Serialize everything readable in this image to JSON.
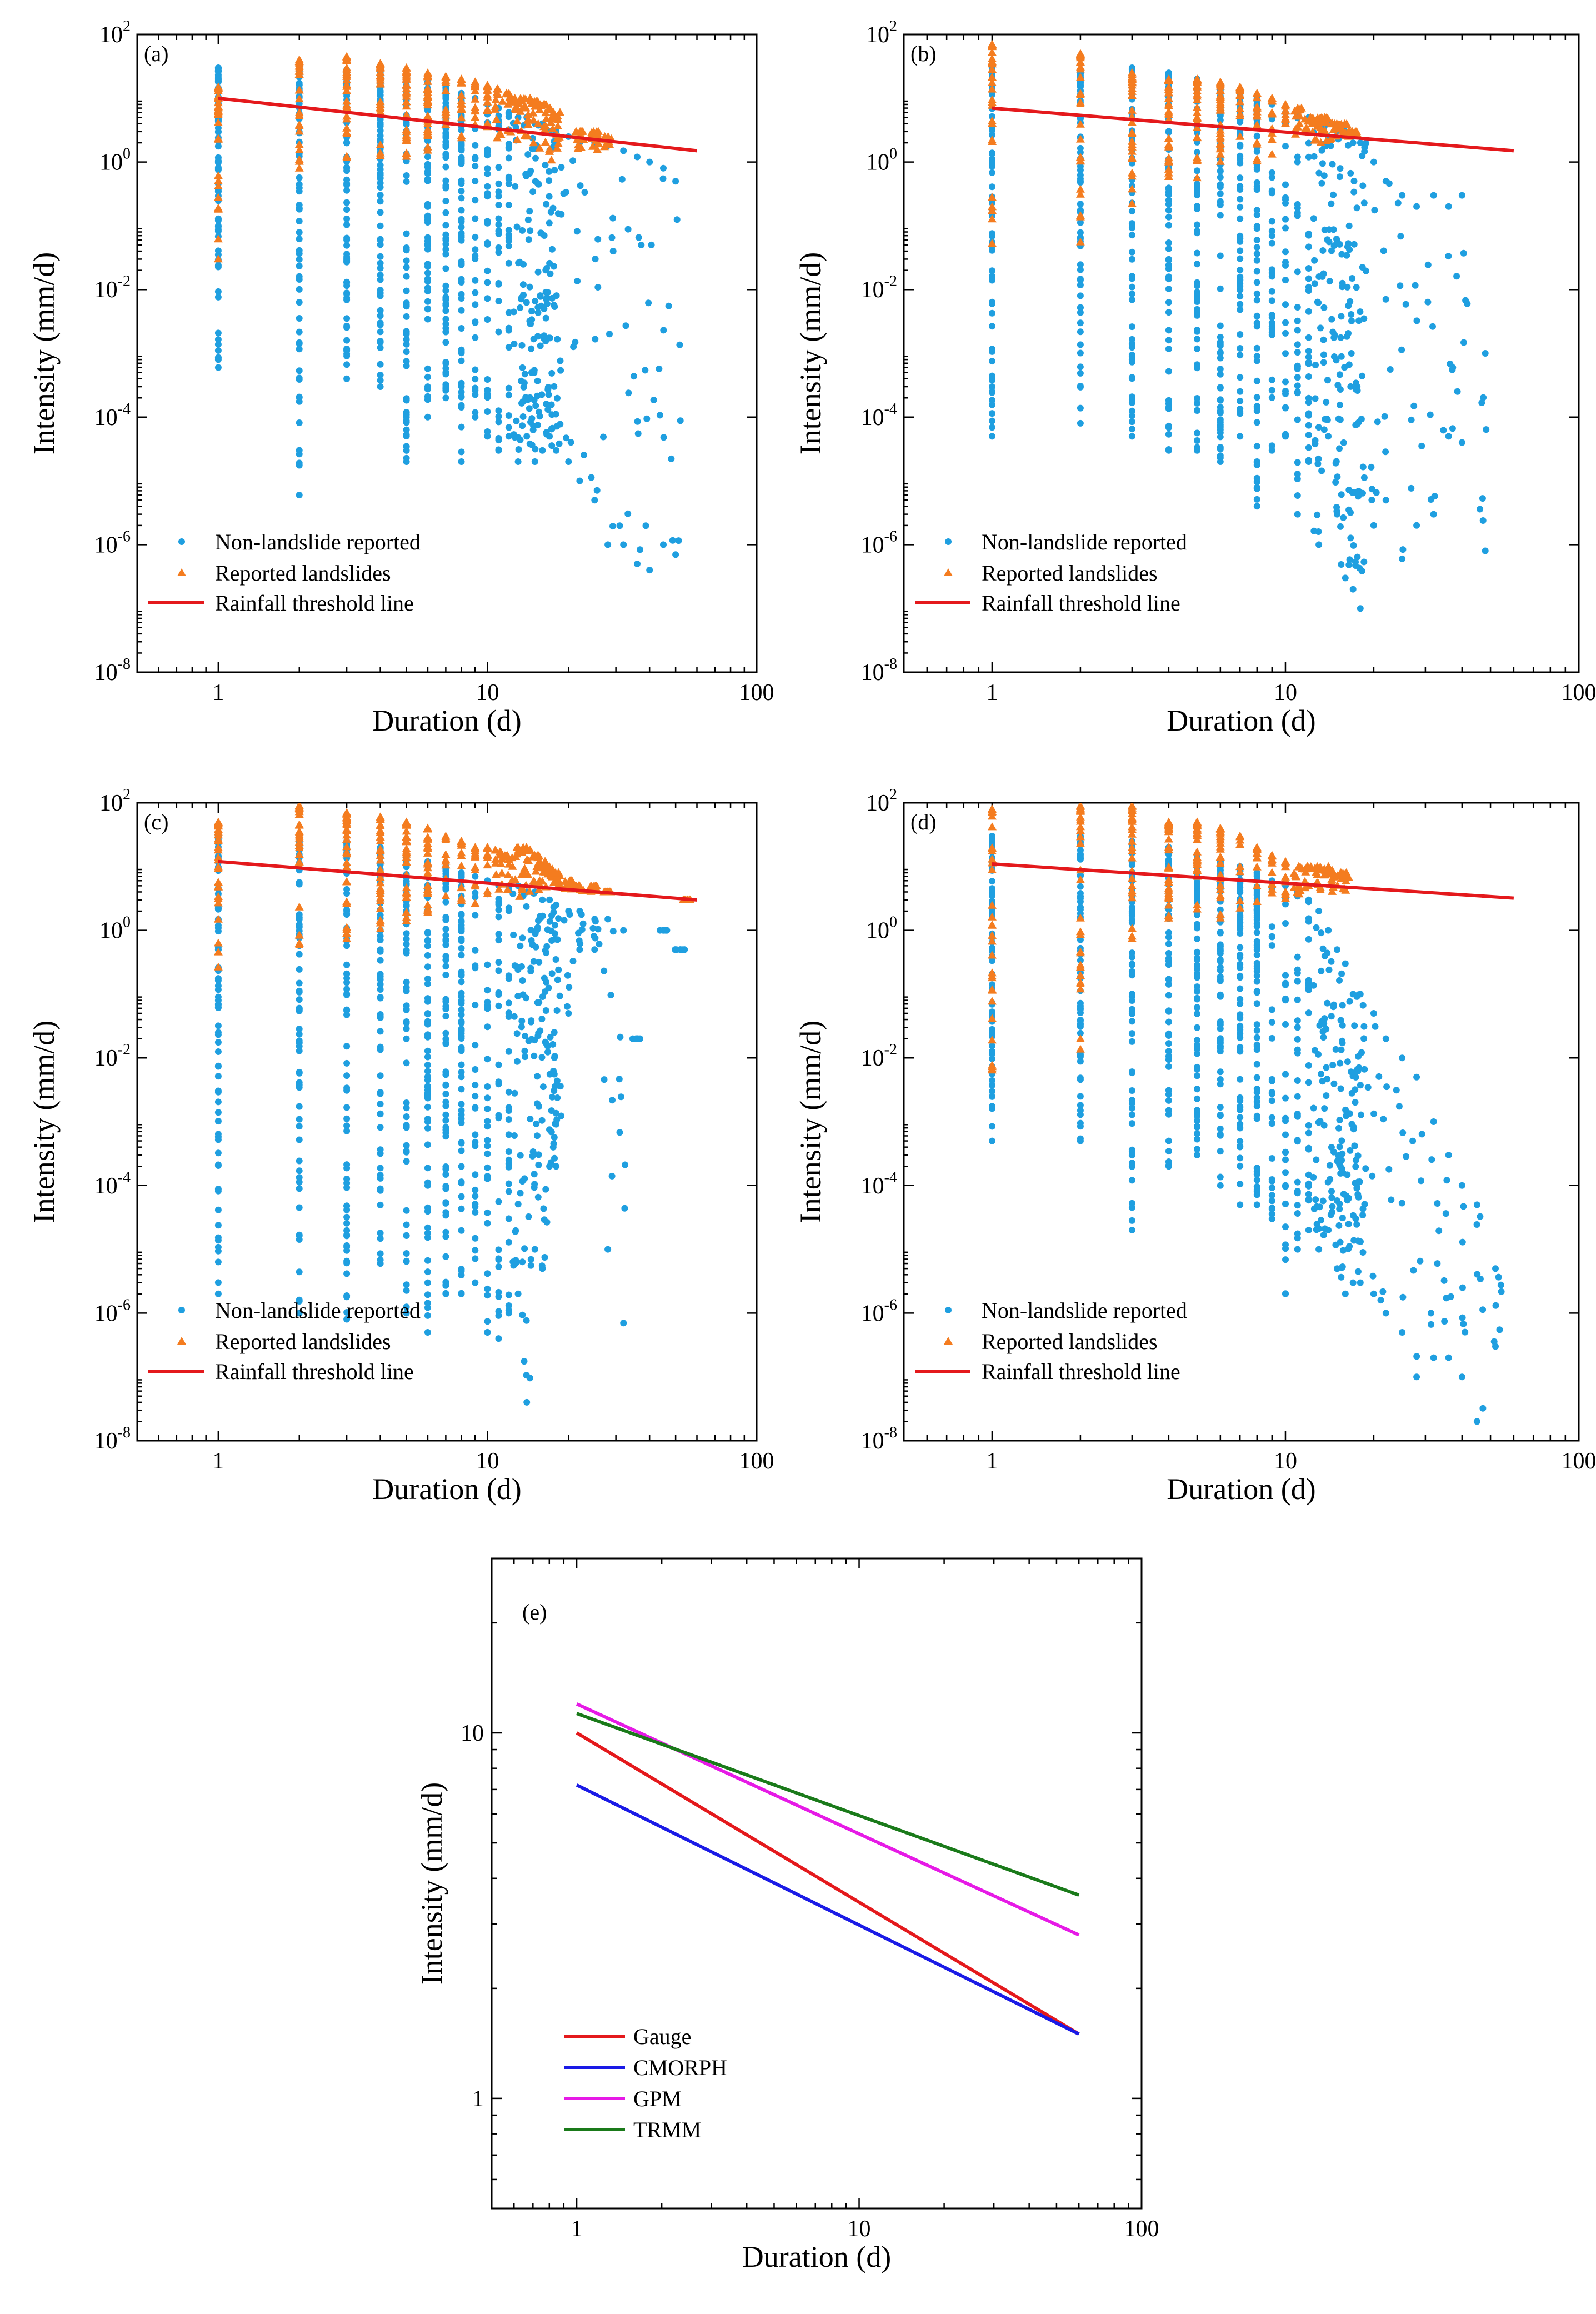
{
  "figure": {
    "panels": [
      {
        "id": "a",
        "label": "(a)",
        "xlabel": "Duration (d)",
        "ylabel": "Intensity (mm/d)",
        "legend": [
          "Non-landslide reported",
          "Reported landslides",
          "Rainfall threshold line"
        ]
      },
      {
        "id": "b",
        "label": "(b)",
        "xlabel": "Duration (d)",
        "ylabel": "Intensity (mm/d)",
        "legend": [
          "Non-landslide reported",
          "Reported landslides",
          "Rainfall threshold line"
        ]
      },
      {
        "id": "c",
        "label": "(c)",
        "xlabel": "Duration (d)",
        "ylabel": "Intensity (mm/d)",
        "legend": [
          "Non-landslide reported",
          "Reported landslides",
          "Rainfall threshold line"
        ]
      },
      {
        "id": "d",
        "label": "(d)",
        "xlabel": "Duration (d)",
        "ylabel": "Intensity (mm/d)",
        "legend": [
          "Non-landslide reported",
          "Reported landslides",
          "Rainfall threshold line"
        ]
      },
      {
        "id": "e",
        "label": "(e)",
        "xlabel": "Duration (d)",
        "ylabel": "Intensity (mm/d)",
        "legend": [
          "Gauge",
          "CMORPH",
          "GPM",
          "TRMM"
        ]
      }
    ],
    "colors": {
      "non_landslide": "#1f9fe0",
      "landslide": "#f47c1f",
      "threshold": "#e4191c",
      "gauge": "#e4191c",
      "cmorph": "#1a1ae6",
      "gpm": "#e61ae6",
      "trmm": "#1a7a1a"
    }
  },
  "chart_data": [
    {
      "panel": "a",
      "type": "scatter",
      "title": "",
      "xlabel": "Duration (d)",
      "ylabel": "Intensity (mm/d)",
      "xscale": "log",
      "yscale": "log",
      "xlim": [
        0.5,
        100
      ],
      "ylim": [
        1e-08,
        100
      ],
      "xticks": [
        "1",
        "10",
        "100"
      ],
      "yticks": [
        "10^-8",
        "10^-6",
        "10^-4",
        "10^-2",
        "10^0",
        "10^2"
      ],
      "legend_position": "bottom-left",
      "threshold_line": {
        "name": "Rainfall threshold line",
        "x": [
          1,
          60
        ],
        "y": [
          10,
          1.5
        ]
      },
      "non_landslide_profile": {
        "durations": [
          1,
          2,
          3,
          4,
          5,
          6,
          7,
          8,
          9,
          10,
          11,
          12,
          13,
          14,
          15,
          16,
          17,
          18,
          20,
          22,
          25,
          28,
          32,
          36,
          40,
          45,
          50
        ],
        "max_intensity": [
          30,
          30,
          28,
          25,
          22,
          18,
          15,
          12,
          10,
          8,
          7,
          6,
          5,
          5,
          4,
          4,
          3,
          3,
          2.5,
          2,
          2,
          1.8,
          1.5,
          1.2,
          1,
          0.8,
          0.5
        ],
        "min_intensity": [
          0.0006,
          6e-06,
          0.0004,
          0.0003,
          2e-05,
          0.0001,
          0.0002,
          2e-05,
          0.0001,
          5e-05,
          3e-05,
          5e-05,
          2e-05,
          5e-05,
          2e-05,
          3e-05,
          5e-05,
          3e-05,
          2e-05,
          1e-05,
          5e-06,
          1e-06,
          1e-06,
          5e-07,
          4e-07,
          1e-06,
          7e-07
        ]
      },
      "landslide_profile": {
        "durations": [
          1,
          2,
          3,
          4,
          5,
          6,
          7,
          8,
          9,
          10,
          11,
          12,
          13,
          14,
          15,
          16,
          17,
          18,
          22,
          25,
          28
        ],
        "max_intensity": [
          15,
          40,
          45,
          35,
          30,
          25,
          22,
          20,
          18,
          16,
          14,
          12,
          10,
          10,
          9,
          8,
          7,
          6,
          3,
          3,
          2.5
        ],
        "min_intensity": [
          0.03,
          0.5,
          0.7,
          1,
          1,
          1.5,
          2,
          2,
          2.5,
          2,
          2,
          2,
          2,
          1.5,
          1.5,
          1.5,
          1,
          1,
          1.5,
          1.5,
          1.5
        ]
      }
    },
    {
      "panel": "b",
      "type": "scatter",
      "title": "",
      "xlabel": "Duration (d)",
      "ylabel": "Intensity (mm/d)",
      "xscale": "log",
      "yscale": "log",
      "xlim": [
        0.5,
        100
      ],
      "ylim": [
        1e-08,
        100
      ],
      "xticks": [
        "1",
        "10",
        "100"
      ],
      "yticks": [
        "10^-8",
        "10^-6",
        "10^-4",
        "10^-2",
        "10^0",
        "10^2"
      ],
      "legend_position": "bottom-left",
      "threshold_line": {
        "name": "Rainfall threshold line",
        "x": [
          1,
          60
        ],
        "y": [
          7,
          1.5
        ]
      },
      "non_landslide_profile": {
        "durations": [
          1,
          2,
          3,
          4,
          5,
          6,
          7,
          8,
          9,
          10,
          11,
          12,
          13,
          14,
          15,
          16,
          17,
          18,
          20,
          22,
          25,
          28,
          32,
          36,
          40,
          48
        ],
        "max_intensity": [
          30,
          25,
          30,
          25,
          20,
          15,
          12,
          10,
          8,
          6,
          6,
          5,
          4,
          4,
          3,
          3,
          2,
          2,
          1,
          0.5,
          0.3,
          0.2,
          0.3,
          0.2,
          0.3,
          0.001
        ],
        "min_intensity": [
          5e-05,
          8e-05,
          5e-05,
          3e-05,
          3e-05,
          2e-05,
          5e-05,
          4e-06,
          3e-05,
          5e-05,
          3e-06,
          2e-05,
          1e-06,
          5e-05,
          3e-06,
          3e-07,
          2e-07,
          1e-07,
          2e-06,
          5e-06,
          6e-07,
          2e-06,
          3e-06,
          5e-05,
          4e-05,
          8e-07
        ]
      },
      "landslide_profile": {
        "durations": [
          1,
          2,
          3,
          4,
          5,
          6,
          7,
          8,
          9,
          10,
          11,
          12,
          13,
          14,
          15,
          16,
          17
        ],
        "max_intensity": [
          70,
          50,
          25,
          20,
          20,
          18,
          15,
          12,
          10,
          8,
          7,
          5,
          5,
          5,
          4,
          4,
          3
        ],
        "min_intensity": [
          0.05,
          0.05,
          0.03,
          0.5,
          0.5,
          0.8,
          1,
          1,
          1.2,
          1.5,
          2,
          2,
          2,
          2,
          2,
          2.5,
          2.5
        ]
      }
    },
    {
      "panel": "c",
      "type": "scatter",
      "title": "",
      "xlabel": "Duration (d)",
      "ylabel": "Intensity (mm/d)",
      "xscale": "log",
      "yscale": "log",
      "xlim": [
        0.5,
        100
      ],
      "ylim": [
        1e-08,
        100
      ],
      "xticks": [
        "1",
        "10",
        "100"
      ],
      "yticks": [
        "10^-8",
        "10^-6",
        "10^-4",
        "10^-2",
        "10^0",
        "10^2"
      ],
      "legend_position": "bottom-left",
      "threshold_line": {
        "name": "Rainfall threshold line",
        "x": [
          1,
          60
        ],
        "y": [
          12,
          3
        ]
      },
      "non_landslide_profile": {
        "durations": [
          1,
          2,
          3,
          4,
          5,
          6,
          7,
          8,
          9,
          10,
          11,
          12,
          13,
          14,
          15,
          16,
          17,
          18,
          20,
          22,
          25,
          28,
          32,
          36,
          45,
          52
        ],
        "max_intensity": [
          30,
          25,
          25,
          20,
          15,
          12,
          10,
          8,
          7,
          6,
          5,
          5,
          5,
          4,
          4,
          3,
          3,
          2.5,
          2,
          2,
          1.5,
          1.5,
          1,
          0.02,
          1,
          0.5
        ],
        "min_intensity": [
          2e-06,
          1e-06,
          8e-07,
          6e-06,
          1e-06,
          5e-07,
          2e-06,
          2e-06,
          3e-06,
          5e-07,
          4e-07,
          1e-06,
          2e-06,
          4e-08,
          1e-05,
          5e-06,
          0.0002,
          0.0002,
          0.05,
          0.5,
          0.5,
          1e-05,
          7e-07,
          0.02,
          1,
          0.5
        ]
      },
      "landslide_profile": {
        "durations": [
          1,
          2,
          3,
          4,
          5,
          6,
          7,
          8,
          9,
          10,
          11,
          12,
          13,
          14,
          15,
          16,
          17,
          18,
          20,
          22,
          25,
          28,
          55
        ],
        "max_intensity": [
          50,
          90,
          70,
          60,
          50,
          40,
          30,
          25,
          20,
          20,
          18,
          15,
          20,
          20,
          15,
          12,
          10,
          8,
          6,
          5,
          5,
          4,
          3
        ],
        "min_intensity": [
          0.2,
          0.5,
          0.7,
          1,
          1.2,
          1.5,
          2,
          2,
          2.5,
          3,
          3,
          3,
          3,
          4,
          4,
          4,
          4,
          4,
          4,
          4,
          4,
          4,
          3
        ]
      }
    },
    {
      "panel": "d",
      "type": "scatter",
      "title": "",
      "xlabel": "Duration (d)",
      "ylabel": "Intensity (mm/d)",
      "xscale": "log",
      "yscale": "log",
      "xlim": [
        0.5,
        100
      ],
      "ylim": [
        1e-08,
        100
      ],
      "xticks": [
        "1",
        "10",
        "100"
      ],
      "yticks": [
        "10^-8",
        "10^-6",
        "10^-4",
        "10^-2",
        "10^0",
        "10^2"
      ],
      "legend_position": "bottom-left",
      "threshold_line": {
        "name": "Rainfall threshold line",
        "x": [
          1,
          60
        ],
        "y": [
          11,
          3.2
        ]
      },
      "non_landslide_profile": {
        "durations": [
          1,
          2,
          3,
          4,
          5,
          6,
          7,
          8,
          9,
          10,
          11,
          12,
          13,
          14,
          15,
          16,
          17,
          18,
          20,
          22,
          25,
          28,
          32,
          36,
          40,
          45,
          52
        ],
        "max_intensity": [
          30,
          30,
          25,
          20,
          15,
          12,
          10,
          8,
          6,
          5,
          4,
          3,
          2,
          1,
          0.5,
          0.3,
          0.1,
          0.1,
          0.05,
          0.02,
          0.01,
          0.005,
          0.001,
          0.0003,
          0.0001,
          5e-05,
          5e-06
        ],
        "min_intensity": [
          0.0005,
          0.0005,
          2e-05,
          0.0002,
          0.0003,
          0.0001,
          5e-05,
          5e-05,
          3e-05,
          2e-06,
          1e-05,
          2e-05,
          1e-05,
          2e-05,
          5e-06,
          2e-06,
          3e-06,
          3e-06,
          2e-06,
          1e-06,
          5e-07,
          1e-07,
          2e-07,
          2e-07,
          1e-07,
          2e-08,
          3e-07
        ]
      },
      "landslide_profile": {
        "durations": [
          1,
          2,
          3,
          4,
          5,
          6,
          7,
          8,
          9,
          10,
          11,
          12,
          13,
          14,
          15,
          16
        ],
        "max_intensity": [
          80,
          90,
          90,
          50,
          50,
          40,
          30,
          20,
          15,
          12,
          10,
          10,
          10,
          10,
          8,
          8
        ],
        "min_intensity": [
          0.005,
          0.005,
          0.5,
          0.5,
          1,
          1.5,
          2,
          2,
          2.5,
          3,
          3,
          4,
          4,
          4,
          4,
          4
        ]
      }
    },
    {
      "panel": "e",
      "type": "line",
      "title": "",
      "xlabel": "Duration (d)",
      "ylabel": "Intensity (mm/d)",
      "xscale": "log",
      "yscale": "log",
      "xlim": [
        0.5,
        100
      ],
      "ylim": [
        0.5,
        30
      ],
      "xticks": [
        "1",
        "10",
        "100"
      ],
      "yticks": [
        "1",
        "10"
      ],
      "legend_position": "bottom-left",
      "series": [
        {
          "name": "Gauge",
          "x": [
            1,
            60
          ],
          "y": [
            10,
            1.5
          ]
        },
        {
          "name": "CMORPH",
          "x": [
            1,
            60
          ],
          "y": [
            7.2,
            1.5
          ]
        },
        {
          "name": "GPM",
          "x": [
            1,
            60
          ],
          "y": [
            12,
            2.8
          ]
        },
        {
          "name": "TRMM",
          "x": [
            1,
            60
          ],
          "y": [
            11.3,
            3.6
          ]
        }
      ]
    }
  ]
}
